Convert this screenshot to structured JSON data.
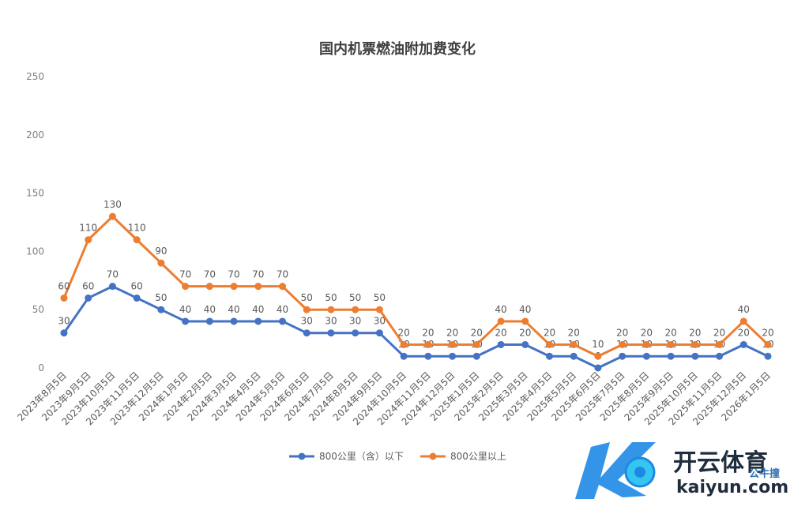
{
  "chart_data": {
    "type": "line",
    "title": "国内机票燃油附加费变化",
    "xlabel": "",
    "ylabel": "",
    "ylim": [
      0,
      250
    ],
    "yticks": [
      0,
      50,
      100,
      150,
      200,
      250
    ],
    "grid": false,
    "legend": "bottom",
    "categories": [
      "2023年8月5日",
      "2023年9月5日",
      "2023年10月5日",
      "2023年11月5日",
      "2023年12月5日",
      "2024年1月5日",
      "2024年2月5日",
      "2024年3月5日",
      "2024年4月5日",
      "2024年5月5日",
      "2024年6月5日",
      "2024年7月5日",
      "2024年8月5日",
      "2024年9月5日",
      "2024年10月5日",
      "2024年11月5日",
      "2024年12月5日",
      "2025年1月5日",
      "2025年2月5日",
      "2025年3月5日",
      "2025年4月5日",
      "2025年5月5日",
      "2025年6月5日",
      "2025年7月5日",
      "2025年8月5日",
      "2025年9月5日",
      "2025年10月5日",
      "2025年11月5日",
      "2025年12月5日",
      "2026年1月5日"
    ],
    "series": [
      {
        "name": "800公里（含）以下",
        "color": "#4472c4",
        "values": [
          30,
          60,
          70,
          60,
          50,
          40,
          40,
          40,
          40,
          40,
          30,
          30,
          30,
          30,
          10,
          10,
          10,
          10,
          20,
          20,
          10,
          10,
          0,
          10,
          10,
          10,
          10,
          10,
          20,
          10
        ]
      },
      {
        "name": "800公里以上",
        "color": "#ed7d31",
        "values": [
          60,
          110,
          130,
          110,
          90,
          70,
          70,
          70,
          70,
          70,
          50,
          50,
          50,
          50,
          20,
          20,
          20,
          20,
          40,
          40,
          20,
          20,
          10,
          20,
          20,
          20,
          20,
          20,
          40,
          20
        ]
      }
    ]
  },
  "watermark": {
    "brand": "开云体育",
    "url": "kaiyun.com",
    "tag": "公牛撞",
    "colors": {
      "blue": "#1e88e5",
      "cyan": "#35c6f0"
    }
  }
}
